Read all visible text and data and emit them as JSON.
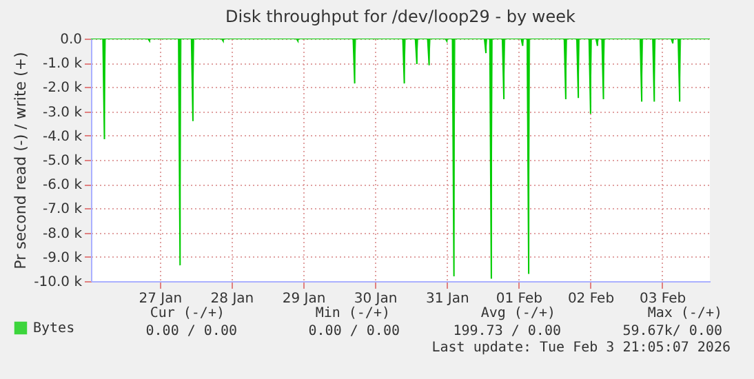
{
  "chart_data": {
    "type": "area",
    "title": "Disk throughput for /dev/loop29 - by week",
    "ylabel": "Pr second read (-) / write (+)",
    "xlim": [
      "2026-01-26T13:00",
      "2026-02-04T04:00"
    ],
    "ylim": [
      -10000,
      0
    ],
    "xticks": [
      {
        "value": "2026-01-27T12:00",
        "label": "27 Jan"
      },
      {
        "value": "2026-01-28T12:00",
        "label": "28 Jan"
      },
      {
        "value": "2026-01-29T12:00",
        "label": "29 Jan"
      },
      {
        "value": "2026-01-30T12:00",
        "label": "30 Jan"
      },
      {
        "value": "2026-01-31T12:00",
        "label": "31 Jan"
      },
      {
        "value": "2026-02-01T12:00",
        "label": "01 Feb"
      },
      {
        "value": "2026-02-02T12:00",
        "label": "02 Feb"
      },
      {
        "value": "2026-02-03T12:00",
        "label": "03 Feb"
      }
    ],
    "yticks": [
      {
        "value": 0,
        "label": "0.0"
      },
      {
        "value": -1000,
        "label": "-1.0 k"
      },
      {
        "value": -2000,
        "label": "-2.0 k"
      },
      {
        "value": -3000,
        "label": "-3.0 k"
      },
      {
        "value": -4000,
        "label": "-4.0 k"
      },
      {
        "value": -5000,
        "label": "-5.0 k"
      },
      {
        "value": -6000,
        "label": "-6.0 k"
      },
      {
        "value": -7000,
        "label": "-7.0 k"
      },
      {
        "value": -8000,
        "label": "-8.0 k"
      },
      {
        "value": -9000,
        "label": "-9.0 k"
      },
      {
        "value": -10000,
        "label": "-10.0 k"
      }
    ],
    "grid": true,
    "legend": "bottom left",
    "series": [
      {
        "name": "Bytes",
        "color": "#00cc00",
        "x": [
          "2026-01-26T13:00",
          "2026-01-26T17:00",
          "2026-01-26T17:30",
          "2026-01-26T18:00",
          "2026-01-27T08:00",
          "2026-01-27T08:36",
          "2026-01-27T09:00",
          "2026-01-27T18:18",
          "2026-01-27T18:48",
          "2026-01-27T19:18",
          "2026-01-27T22:36",
          "2026-01-27T23:06",
          "2026-01-27T23:36",
          "2026-01-28T08:42",
          "2026-01-28T09:12",
          "2026-01-28T09:42",
          "2026-01-29T09:42",
          "2026-01-29T10:12",
          "2026-01-29T10:42",
          "2026-01-30T04:42",
          "2026-01-30T05:12",
          "2026-01-30T05:42",
          "2026-01-30T21:18",
          "2026-01-30T21:48",
          "2026-01-30T22:18",
          "2026-01-31T01:30",
          "2026-01-31T02:00",
          "2026-01-31T02:30",
          "2026-01-31T05:36",
          "2026-01-31T06:06",
          "2026-01-31T06:36",
          "2026-01-31T11:30",
          "2026-01-31T12:00",
          "2026-01-31T12:30",
          "2026-01-31T13:54",
          "2026-01-31T14:24",
          "2026-01-31T14:54",
          "2026-02-01T00:36",
          "2026-02-01T01:06",
          "2026-02-01T01:36",
          "2026-02-01T02:24",
          "2026-02-01T02:54",
          "2026-02-01T03:24",
          "2026-02-01T06:36",
          "2026-02-01T07:06",
          "2026-02-01T07:36",
          "2026-02-01T12:54",
          "2026-02-01T13:24",
          "2026-02-01T13:54",
          "2026-02-01T14:54",
          "2026-02-01T15:24",
          "2026-02-01T15:54",
          "2026-02-02T03:18",
          "2026-02-02T03:48",
          "2026-02-02T04:18",
          "2026-02-02T07:30",
          "2026-02-02T08:00",
          "2026-02-02T08:30",
          "2026-02-02T11:36",
          "2026-02-02T12:06",
          "2026-02-02T12:36",
          "2026-02-02T13:54",
          "2026-02-02T14:24",
          "2026-02-02T14:54",
          "2026-02-02T15:54",
          "2026-02-02T16:24",
          "2026-02-02T16:54",
          "2026-02-03T04:42",
          "2026-02-03T05:12",
          "2026-02-03T05:42",
          "2026-02-03T08:54",
          "2026-02-03T09:24",
          "2026-02-03T09:54",
          "2026-02-03T15:06",
          "2026-02-03T15:36",
          "2026-02-03T16:06",
          "2026-02-03T17:24",
          "2026-02-03T17:54",
          "2026-02-03T18:24",
          "2026-02-04T04:00"
        ],
        "values": [
          0,
          0,
          -4150,
          0,
          0,
          -100,
          0,
          0,
          -9350,
          0,
          0,
          -3400,
          0,
          0,
          -100,
          0,
          0,
          -100,
          0,
          0,
          -1850,
          0,
          0,
          -1850,
          0,
          0,
          -1050,
          0,
          0,
          -1100,
          0,
          0,
          -100,
          0,
          0,
          -9800,
          0,
          0,
          -600,
          0,
          0,
          -9900,
          0,
          0,
          -2500,
          0,
          0,
          -300,
          0,
          0,
          -9700,
          0,
          0,
          -2500,
          0,
          0,
          -2450,
          0,
          0,
          -3100,
          0,
          0,
          -300,
          0,
          0,
          -2500,
          0,
          0,
          -2600,
          0,
          0,
          -2600,
          0,
          0,
          -200,
          0,
          0,
          -2600,
          0,
          0
        ]
      }
    ],
    "annotations": [
      "Cur (-/+)",
      "Min (-/+)",
      "Avg (-/+)",
      "Max (-/+)",
      "0.00 /   0.00",
      "0.00 /   0.00",
      "199.73 /   0.00",
      "59.67k/   0.00",
      "Last update: Tue Feb  3 21:05:07 2026"
    ]
  }
}
